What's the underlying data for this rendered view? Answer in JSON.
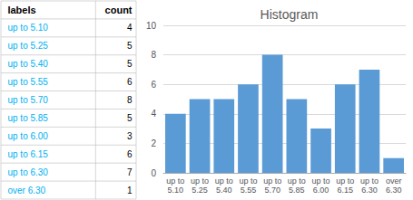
{
  "chart_data": {
    "type": "bar",
    "title": "Histogram",
    "categories": [
      "up to\n5.10",
      "up to\n5.25",
      "up to\n5.40",
      "up to\n5.55",
      "up to\n5.70",
      "up to\n5.85",
      "up to\n6.00",
      "up to\n6.15",
      "up to\n6.30",
      "over\n6.30"
    ],
    "values": [
      4,
      5,
      5,
      6,
      8,
      5,
      3,
      6,
      7,
      1
    ],
    "color": "#5B9BD5",
    "ylim": [
      0,
      10
    ],
    "yticks": [
      0,
      2,
      4,
      6,
      8,
      10
    ],
    "grid": true,
    "table": {
      "header": [
        "labels",
        "count"
      ],
      "labels": [
        "up to 5.10",
        "up to 5.25",
        "up to 5.40",
        "up to 5.55",
        "up to 5.70",
        "up to 5.85",
        "up to 6.00",
        "up to 6.15",
        "up to 6.30",
        "over 6.30"
      ],
      "label_color": "#00B0F0"
    }
  }
}
